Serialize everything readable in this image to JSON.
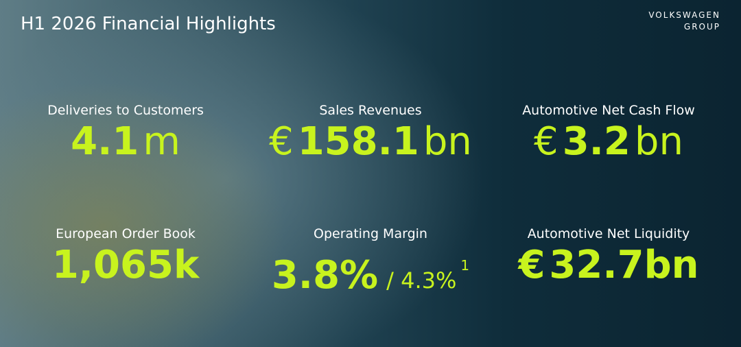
{
  "header": {
    "title": "H1 2026 Financial Highlights",
    "logo": [
      "VOLKSWAGEN",
      "GROUP"
    ]
  },
  "kpis": [
    {
      "label": "Deliveries to Customers",
      "parts": [
        {
          "text": "4.1",
          "bold": true
        },
        {
          "text": "m",
          "bold": false
        }
      ]
    },
    {
      "label": "Sales Revenues",
      "parts": [
        {
          "text": "€",
          "bold": false
        },
        {
          "text": "158.1",
          "bold": true
        },
        {
          "text": "bn",
          "bold": false
        }
      ]
    },
    {
      "label": "Automotive Net Cash Flow",
      "parts": [
        {
          "text": "€",
          "bold": false
        },
        {
          "text": "3.2",
          "bold": true
        },
        {
          "text": "bn",
          "bold": false
        }
      ]
    },
    {
      "label": "European Order Book",
      "parts": [
        {
          "text": "1,065k",
          "bold": true
        }
      ]
    },
    {
      "label": "Operating Margin",
      "parts": [
        {
          "text": "3.8%",
          "bold": true
        },
        {
          "text": "/ 4.3%",
          "bold": false,
          "small": true
        },
        {
          "text": "1",
          "bold": false,
          "sup": true
        }
      ]
    },
    {
      "label": "Automotive Net Liquidity",
      "parts": [
        {
          "text": "€",
          "bold": true
        },
        {
          "text": "32.7bn",
          "bold": true
        }
      ]
    }
  ]
}
